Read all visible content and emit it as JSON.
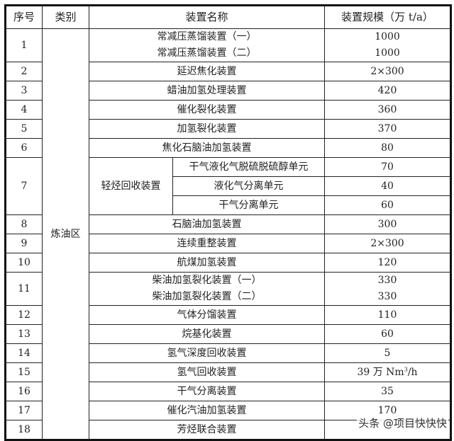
{
  "headers": {
    "no": "序号",
    "category": "类别",
    "name": "装置名称",
    "scale": "装置规模（万 t/a）"
  },
  "category": "炼油区",
  "rows": [
    {
      "no": "1",
      "lines": [
        {
          "name": "常减压蒸馏装置（一）",
          "scale": "1000"
        },
        {
          "name": "常减压蒸馏装置（二）",
          "scale": "1000"
        }
      ]
    },
    {
      "no": "2",
      "name": "延迟焦化装置",
      "scale": "2×300"
    },
    {
      "no": "3",
      "name": "蜡油加氢处理装置",
      "scale": "420"
    },
    {
      "no": "4",
      "name": "催化裂化装置",
      "scale": "360"
    },
    {
      "no": "5",
      "name": "加氢裂化装置",
      "scale": "370"
    },
    {
      "no": "6",
      "name": "焦化石脑油加氢装置",
      "scale": "80"
    },
    {
      "no": "7",
      "group": "轻烃回收装置",
      "units": [
        {
          "name": "干气液化气脱硫脱硫醇单元",
          "scale": "70"
        },
        {
          "name": "液化气分离单元",
          "scale": "40"
        },
        {
          "name": "干气分离单元",
          "scale": "60"
        }
      ]
    },
    {
      "no": "8",
      "name": "石脑油加氢装置",
      "scale": "300"
    },
    {
      "no": "9",
      "name": "连续重整装置",
      "scale": "2×300"
    },
    {
      "no": "10",
      "name": "航煤加氢装置",
      "scale": "120"
    },
    {
      "no": "11",
      "lines": [
        {
          "name": "柴油加氢裂化装置（一）",
          "scale": "330"
        },
        {
          "name": "柴油加氢裂化装置（二）",
          "scale": "330"
        }
      ]
    },
    {
      "no": "12",
      "name": "气体分馏装置",
      "scale": "110"
    },
    {
      "no": "13",
      "name": "烷基化装置",
      "scale": "60"
    },
    {
      "no": "14",
      "name": "氢气深度回收装置",
      "scale": "5"
    },
    {
      "no": "15",
      "name": "氢气回收装置",
      "scale_prefix": "39 万 Nm",
      "scale_sup": "3",
      "scale_suffix": "/h"
    },
    {
      "no": "16",
      "name": "干气分离装置",
      "scale": "35"
    },
    {
      "no": "17",
      "name": "催化汽油加氢装置",
      "scale": "170"
    },
    {
      "no": "18",
      "name": "芳烃联合装置",
      "scale": ""
    }
  ],
  "watermark": "头条 @项目快快快"
}
